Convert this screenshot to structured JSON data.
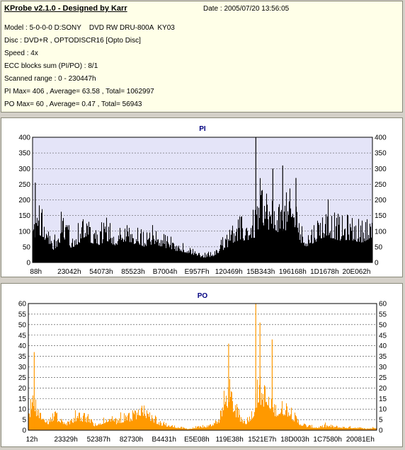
{
  "header": {
    "app_title": "KProbe v2.1.0 - Designed by Karr",
    "date": "Date : 2005/07/20 13:56:05"
  },
  "info_lines": [
    "Model : 5-0-0-0 D:SONY    DVD RW DRU-800A  KY03",
    "Disc : DVD+R , OPTODISCR16 [Opto Disc]",
    "Speed : 4x",
    "ECC blocks sum (PI/PO) : 8/1",
    "Scanned range : 0 - 230447h",
    "PI Max= 406 , Average= 63.58 , Total= 1062997",
    "PO Max= 60 , Average= 0.47 , Total= 56943"
  ],
  "chart_data": [
    {
      "type": "area",
      "title": "PI",
      "ylim": [
        0,
        400
      ],
      "yticks": [
        0,
        50,
        100,
        150,
        200,
        250,
        300,
        350,
        400
      ],
      "xtick_labels": [
        "88h",
        "23042h",
        "54073h",
        "85523h",
        "B7004h",
        "E957Fh",
        "120469h",
        "15B343h",
        "196168h",
        "1D1678h",
        "20E062h"
      ],
      "color": "#000000",
      "plot_bg": "#e4e4f8",
      "envelope": [
        {
          "x": 0,
          "y": 110
        },
        {
          "x": 0.01,
          "y": 210
        },
        {
          "x": 0.025,
          "y": 185
        },
        {
          "x": 0.04,
          "y": 150
        },
        {
          "x": 0.06,
          "y": 75
        },
        {
          "x": 0.075,
          "y": 125
        },
        {
          "x": 0.09,
          "y": 150
        },
        {
          "x": 0.11,
          "y": 100
        },
        {
          "x": 0.13,
          "y": 120
        },
        {
          "x": 0.15,
          "y": 170
        },
        {
          "x": 0.17,
          "y": 140
        },
        {
          "x": 0.19,
          "y": 120
        },
        {
          "x": 0.22,
          "y": 150
        },
        {
          "x": 0.24,
          "y": 120
        },
        {
          "x": 0.27,
          "y": 140
        },
        {
          "x": 0.3,
          "y": 130
        },
        {
          "x": 0.33,
          "y": 110
        },
        {
          "x": 0.36,
          "y": 130
        },
        {
          "x": 0.39,
          "y": 100
        },
        {
          "x": 0.42,
          "y": 80
        },
        {
          "x": 0.45,
          "y": 70
        },
        {
          "x": 0.48,
          "y": 50
        },
        {
          "x": 0.5,
          "y": 30
        },
        {
          "x": 0.53,
          "y": 40
        },
        {
          "x": 0.555,
          "y": 80
        },
        {
          "x": 0.57,
          "y": 100
        },
        {
          "x": 0.59,
          "y": 140
        },
        {
          "x": 0.61,
          "y": 150
        },
        {
          "x": 0.63,
          "y": 155
        },
        {
          "x": 0.655,
          "y": 175
        },
        {
          "x": 0.67,
          "y": 270
        },
        {
          "x": 0.685,
          "y": 260
        },
        {
          "x": 0.7,
          "y": 220
        },
        {
          "x": 0.72,
          "y": 215
        },
        {
          "x": 0.74,
          "y": 220
        },
        {
          "x": 0.76,
          "y": 240
        },
        {
          "x": 0.78,
          "y": 220
        },
        {
          "x": 0.79,
          "y": 130
        },
        {
          "x": 0.81,
          "y": 110
        },
        {
          "x": 0.83,
          "y": 140
        },
        {
          "x": 0.85,
          "y": 170
        },
        {
          "x": 0.87,
          "y": 180
        },
        {
          "x": 0.89,
          "y": 165
        },
        {
          "x": 0.91,
          "y": 150
        },
        {
          "x": 0.93,
          "y": 160
        },
        {
          "x": 0.95,
          "y": 150
        },
        {
          "x": 0.97,
          "y": 140
        },
        {
          "x": 0.99,
          "y": 165
        },
        {
          "x": 1.0,
          "y": 170
        }
      ],
      "spikes": [
        {
          "x": 0.008,
          "y": 255
        },
        {
          "x": 0.657,
          "y": 406
        },
        {
          "x": 0.707,
          "y": 300
        },
        {
          "x": 0.736,
          "y": 310
        },
        {
          "x": 0.775,
          "y": 270
        }
      ]
    },
    {
      "type": "area",
      "title": "PO",
      "ylim": [
        0,
        60
      ],
      "yticks": [
        0,
        5,
        10,
        15,
        20,
        25,
        30,
        35,
        40,
        45,
        50,
        55,
        60
      ],
      "xtick_labels": [
        "12h",
        "23329h",
        "52387h",
        "82730h",
        "B4431h",
        "E5E08h",
        "119E38h",
        "1521E7h",
        "18D003h",
        "1C7580h",
        "20081Eh"
      ],
      "color": "#ff9900",
      "plot_bg": "#ffffff",
      "envelope": [
        {
          "x": 0,
          "y": 10
        },
        {
          "x": 0.01,
          "y": 18
        },
        {
          "x": 0.025,
          "y": 14
        },
        {
          "x": 0.04,
          "y": 10
        },
        {
          "x": 0.055,
          "y": 5
        },
        {
          "x": 0.07,
          "y": 10
        },
        {
          "x": 0.09,
          "y": 8
        },
        {
          "x": 0.11,
          "y": 5
        },
        {
          "x": 0.13,
          "y": 8
        },
        {
          "x": 0.15,
          "y": 9
        },
        {
          "x": 0.17,
          "y": 8
        },
        {
          "x": 0.19,
          "y": 4
        },
        {
          "x": 0.21,
          "y": 6
        },
        {
          "x": 0.23,
          "y": 9
        },
        {
          "x": 0.25,
          "y": 6
        },
        {
          "x": 0.27,
          "y": 8
        },
        {
          "x": 0.29,
          "y": 9
        },
        {
          "x": 0.31,
          "y": 11
        },
        {
          "x": 0.33,
          "y": 14
        },
        {
          "x": 0.35,
          "y": 10
        },
        {
          "x": 0.37,
          "y": 6
        },
        {
          "x": 0.39,
          "y": 4
        },
        {
          "x": 0.41,
          "y": 3
        },
        {
          "x": 0.43,
          "y": 2
        },
        {
          "x": 0.46,
          "y": 1
        },
        {
          "x": 0.49,
          "y": 2
        },
        {
          "x": 0.52,
          "y": 3
        },
        {
          "x": 0.55,
          "y": 8
        },
        {
          "x": 0.565,
          "y": 22
        },
        {
          "x": 0.58,
          "y": 25
        },
        {
          "x": 0.595,
          "y": 14
        },
        {
          "x": 0.61,
          "y": 8
        },
        {
          "x": 0.625,
          "y": 6
        },
        {
          "x": 0.645,
          "y": 12
        },
        {
          "x": 0.66,
          "y": 28
        },
        {
          "x": 0.68,
          "y": 24
        },
        {
          "x": 0.7,
          "y": 15
        },
        {
          "x": 0.72,
          "y": 14
        },
        {
          "x": 0.74,
          "y": 16
        },
        {
          "x": 0.76,
          "y": 10
        },
        {
          "x": 0.78,
          "y": 5
        },
        {
          "x": 0.8,
          "y": 3
        },
        {
          "x": 0.83,
          "y": 2
        },
        {
          "x": 0.86,
          "y": 3
        },
        {
          "x": 0.9,
          "y": 2
        },
        {
          "x": 0.94,
          "y": 2
        },
        {
          "x": 0.97,
          "y": 1
        },
        {
          "x": 1.0,
          "y": 2
        }
      ],
      "spikes": [
        {
          "x": 0.017,
          "y": 37
        },
        {
          "x": 0.575,
          "y": 41
        },
        {
          "x": 0.653,
          "y": 60
        },
        {
          "x": 0.665,
          "y": 51
        },
        {
          "x": 0.7,
          "y": 43
        }
      ]
    }
  ]
}
